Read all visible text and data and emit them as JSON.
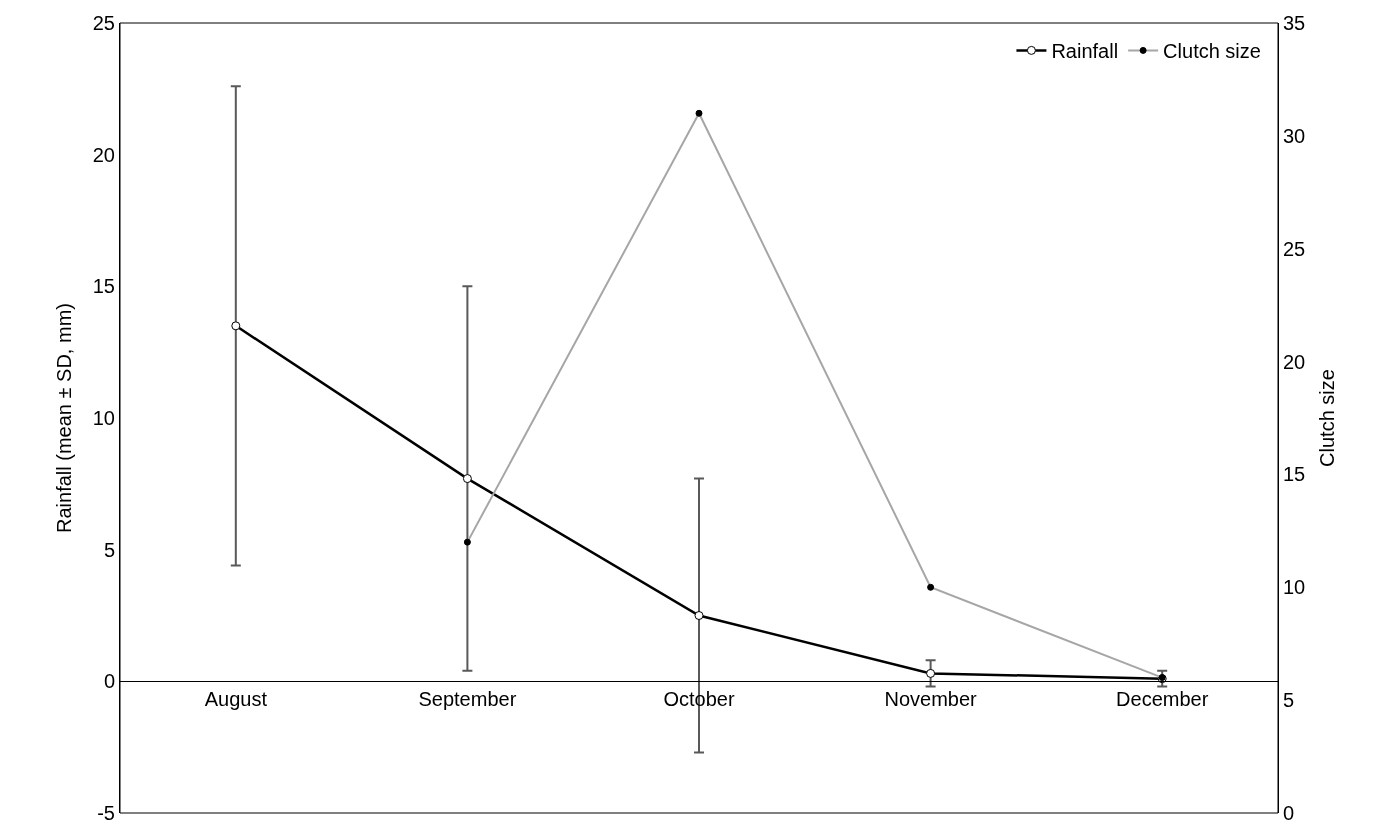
{
  "chart_data": {
    "type": "line",
    "categories": [
      "August",
      "September",
      "October",
      "November",
      "December"
    ],
    "ylabel": "Rainfall (mean ± SD, mm)",
    "y2label": "Clutch size",
    "ylim": [
      -5,
      25
    ],
    "yticks": [
      -5,
      0,
      5,
      10,
      15,
      20,
      25
    ],
    "y2lim": [
      0,
      35
    ],
    "y2ticks": [
      0,
      5,
      10,
      15,
      20,
      25,
      30,
      35
    ],
    "grid": false,
    "legend": "top right",
    "marker": "circle",
    "line_style": "solid",
    "series": [
      {
        "name": "Rainfall",
        "color": "#000000",
        "values": [
          13.5,
          7.7,
          2.5,
          0.3,
          0.1
        ],
        "errors": [
          9.1,
          7.3,
          5.2,
          0.5,
          0.3
        ]
      },
      {
        "name": "Clutch size",
        "color": "#a6a6a6",
        "axis": "y2",
        "values": [
          null,
          12,
          31,
          10,
          6
        ]
      }
    ]
  }
}
